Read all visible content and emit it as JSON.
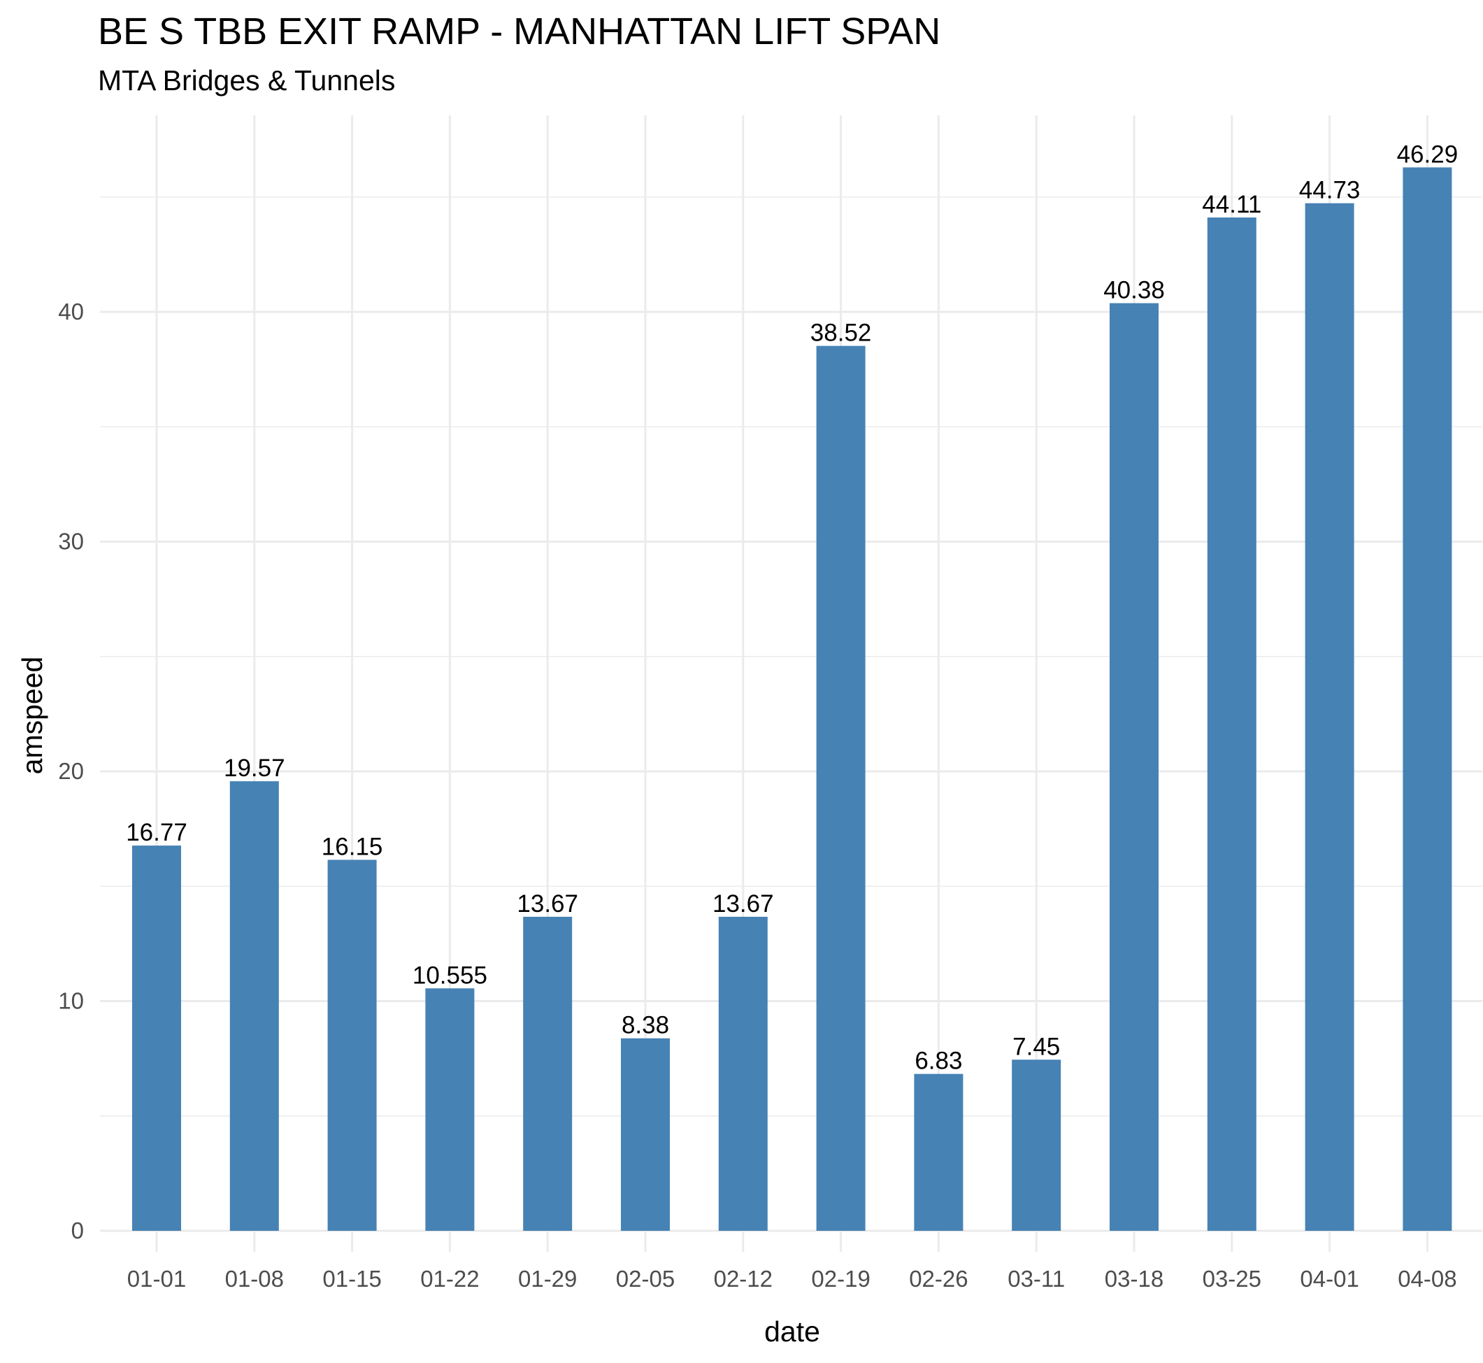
{
  "chart_data": {
    "type": "bar",
    "title": "BE S TBB EXIT RAMP - MANHATTAN LIFT SPAN",
    "subtitle": "MTA Bridges & Tunnels",
    "xlabel": "date",
    "ylabel": "amspeed",
    "categories": [
      "01-01",
      "01-08",
      "01-15",
      "01-22",
      "01-29",
      "02-05",
      "02-12",
      "02-19",
      "02-26",
      "03-11",
      "03-18",
      "03-25",
      "04-01",
      "04-08"
    ],
    "values": [
      16.77,
      19.57,
      16.15,
      10.555,
      13.67,
      8.38,
      13.67,
      38.52,
      6.83,
      7.45,
      40.38,
      44.11,
      44.73,
      46.29
    ],
    "data_labels": [
      "16.77",
      "19.57",
      "16.15",
      "10.555",
      "13.67",
      "8.38",
      "13.67",
      "38.52",
      "6.83",
      "7.45",
      "40.38",
      "44.11",
      "44.73",
      "46.29"
    ],
    "yticks": [
      0,
      10,
      20,
      30,
      40
    ],
    "ylim": [
      0,
      48.5
    ],
    "grid": true,
    "colors": {
      "bar": "#4682b4",
      "grid": "#ebebeb"
    }
  }
}
